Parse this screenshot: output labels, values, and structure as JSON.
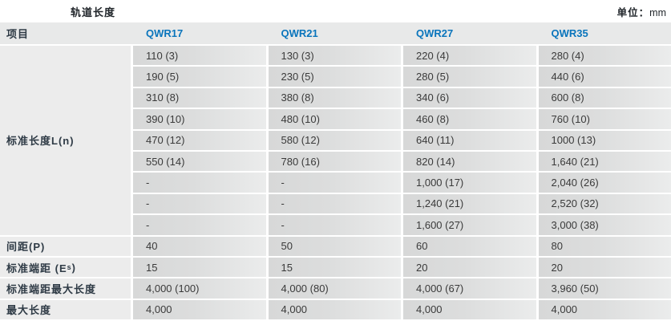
{
  "page": {
    "title": "轨道长度",
    "unit_prefix": "单位：",
    "unit_value": "mm"
  },
  "colors": {
    "accent_blue": "#0a75bc",
    "header_bg": "#e8e9e9",
    "label_cell_bg": "#ececec",
    "value_cell_gradient_start": "#d7d8d8",
    "value_cell_gradient_end": "#ebecec",
    "text_dark": "#2f3b46"
  },
  "table": {
    "header": {
      "item": "项目",
      "columns": [
        "QWR17",
        "QWR21",
        "QWR27",
        "QWR35"
      ]
    },
    "standard_length": {
      "label": "标准长度L(n)",
      "rows": [
        [
          "110 (3)",
          "130 (3)",
          "220 (4)",
          "280 (4)"
        ],
        [
          "190 (5)",
          "230 (5)",
          "280 (5)",
          "440 (6)"
        ],
        [
          "310 (8)",
          "380 (8)",
          "340 (6)",
          "600 (8)"
        ],
        [
          "390 (10)",
          "480 (10)",
          "460 (8)",
          "760 (10)"
        ],
        [
          "470 (12)",
          "580 (12)",
          "640 (11)",
          "1000 (13)"
        ],
        [
          "550 (14)",
          "780 (16)",
          "820 (14)",
          "1,640 (21)"
        ],
        [
          "-",
          "-",
          "1,000 (17)",
          "2,040 (26)"
        ],
        [
          "-",
          "-",
          "1,240 (21)",
          "2,520 (32)"
        ],
        [
          "-",
          "-",
          "1,600 (27)",
          "3,000 (38)"
        ]
      ]
    },
    "footer_rows": [
      {
        "label": "间距(P)",
        "values": [
          "40",
          "50",
          "60",
          "80"
        ]
      },
      {
        "label_prefix": "标准端距 (E",
        "label_sub": "s",
        "label_suffix": ")",
        "values": [
          "15",
          "15",
          "20",
          "20"
        ]
      },
      {
        "label": "标准端距最大长度",
        "values": [
          "4,000 (100)",
          "4,000 (80)",
          "4,000 (67)",
          "3,960 (50)"
        ]
      },
      {
        "label": "最大长度",
        "values": [
          "4,000",
          "4,000",
          "4,000",
          "4,000"
        ]
      }
    ]
  }
}
